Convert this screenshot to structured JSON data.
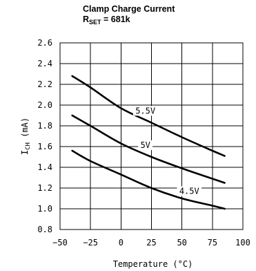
{
  "title": {
    "line1": "Clamp Charge Current",
    "line2_main": "R",
    "line2_sub": "SET",
    "line2_rest": " = 681k"
  },
  "chart_data": {
    "type": "line",
    "title": "Clamp Charge Current R_SET = 681k",
    "xlabel": "Temperature (°C)",
    "ylabel_main": "I",
    "ylabel_sub": "CH",
    "ylabel_unit": " (mA)",
    "xlim": [
      -50,
      100
    ],
    "ylim": [
      0.8,
      2.6
    ],
    "xticks": [
      -50,
      -25,
      0,
      25,
      50,
      75,
      100
    ],
    "xtick_labels": [
      "−50",
      "−25",
      "0",
      "25",
      "50",
      "75",
      "100"
    ],
    "yticks": [
      0.8,
      1.0,
      1.2,
      1.4,
      1.6,
      1.8,
      2.0,
      2.2,
      2.4,
      2.6
    ],
    "ytick_labels": [
      "0.8",
      "1.0",
      "1.2",
      "1.4",
      "1.6",
      "1.8",
      "2.0",
      "2.2",
      "2.4",
      "2.6"
    ],
    "grid": true,
    "series": [
      {
        "name": "5.5V",
        "x": [
          -40,
          -25,
          0,
          25,
          50,
          75,
          85
        ],
        "y": [
          2.28,
          2.17,
          1.97,
          1.83,
          1.69,
          1.56,
          1.51
        ]
      },
      {
        "name": "5V",
        "x": [
          -40,
          -25,
          0,
          25,
          50,
          75,
          85
        ],
        "y": [
          1.9,
          1.8,
          1.63,
          1.5,
          1.39,
          1.29,
          1.25
        ]
      },
      {
        "name": "4.5V",
        "x": [
          -40,
          -25,
          0,
          25,
          50,
          75,
          85
        ],
        "y": [
          1.56,
          1.46,
          1.33,
          1.2,
          1.1,
          1.03,
          1.0
        ]
      }
    ]
  }
}
